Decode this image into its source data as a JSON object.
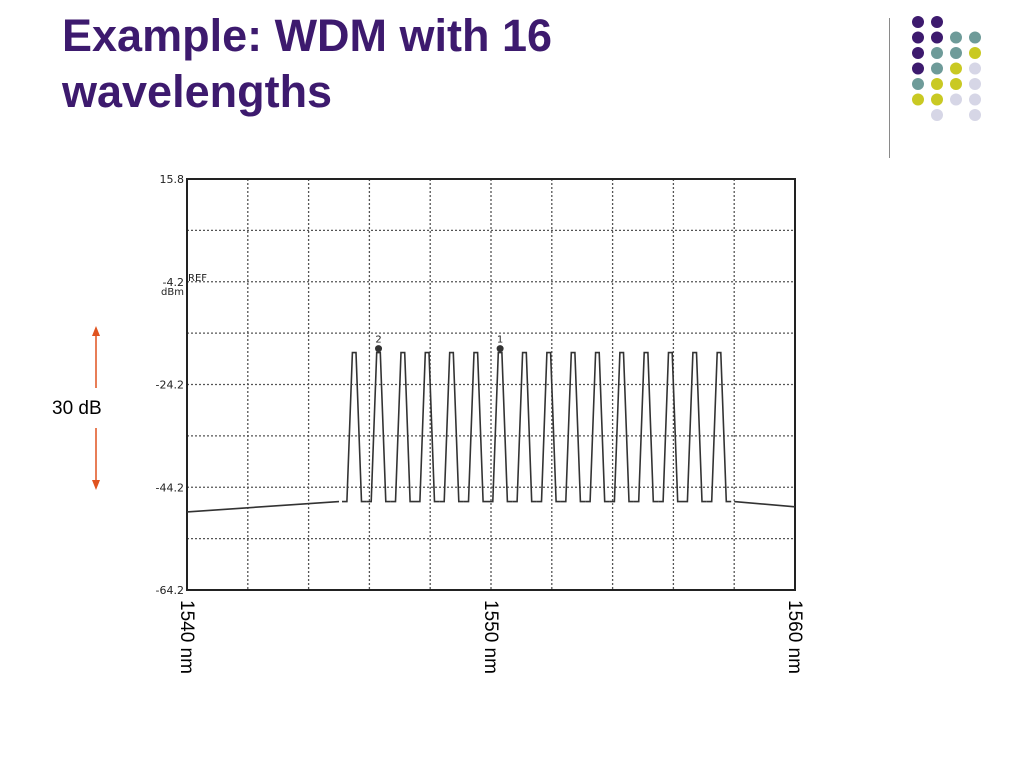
{
  "slide": {
    "title_line1": "Example:  WDM with 16",
    "title_line2": "wavelengths"
  },
  "decoration": {
    "dot_rows": [
      [
        "purple",
        "purple",
        "",
        ""
      ],
      [
        "purple",
        "purple",
        "teal",
        "teal"
      ],
      [
        "purple",
        "teal",
        "teal",
        "yellow"
      ],
      [
        "purple",
        "teal",
        "yellow",
        "lavender"
      ],
      [
        "teal",
        "yellow",
        "yellow",
        "lavender"
      ],
      [
        "yellow",
        "yellow",
        "lavender",
        "lavender"
      ],
      [
        "",
        "lavender",
        "",
        "lavender"
      ]
    ],
    "colors": {
      "purple": "#3d1a6e",
      "teal": "#6e9b99",
      "yellow": "#c9c923",
      "lavender": "#d6d6e6",
      "divider": "#8a8a8a"
    }
  },
  "chart_data": {
    "type": "line",
    "title": "",
    "xlabel": "",
    "ylabel": "dBm",
    "ylim": [
      -64.2,
      15.8
    ],
    "xlim": [
      1540,
      1560
    ],
    "y_ticks": [
      "15.8",
      "-4.2",
      "-24.2",
      "-44.2",
      "-64.2"
    ],
    "y_tick_values": [
      15.8,
      -4.2,
      -24.2,
      -44.2,
      -64.2
    ],
    "ref_label": "REF",
    "x_tick_labels": [
      "1540 nm",
      "1550 nm",
      "1560 nm"
    ],
    "x_tick_values": [
      1540,
      1550,
      1560
    ],
    "grid": true,
    "channel_count": 16,
    "channel_peaks_nm": [
      1545.5,
      1546.3,
      1547.1,
      1547.9,
      1548.7,
      1549.5,
      1550.3,
      1551.1,
      1551.9,
      1552.7,
      1553.5,
      1554.3,
      1555.1,
      1555.9,
      1556.7,
      1557.5
    ],
    "channel_peak_dbm": -18,
    "floor_dbm": -47,
    "noise_floor_left": [
      [
        1540,
        -49
      ],
      [
        1545,
        -47
      ]
    ],
    "noise_floor_right": [
      [
        1558,
        -47
      ],
      [
        1560,
        -48
      ]
    ],
    "markers": [
      {
        "label": "2",
        "x": 1546.3
      },
      {
        "label": "1",
        "x": 1550.3
      }
    ],
    "annotation": {
      "text": "30 dB",
      "arrow_color": "#e0531f"
    },
    "colors": {
      "trace": "#333333",
      "grid": "#555555",
      "frame": "#222222"
    }
  }
}
